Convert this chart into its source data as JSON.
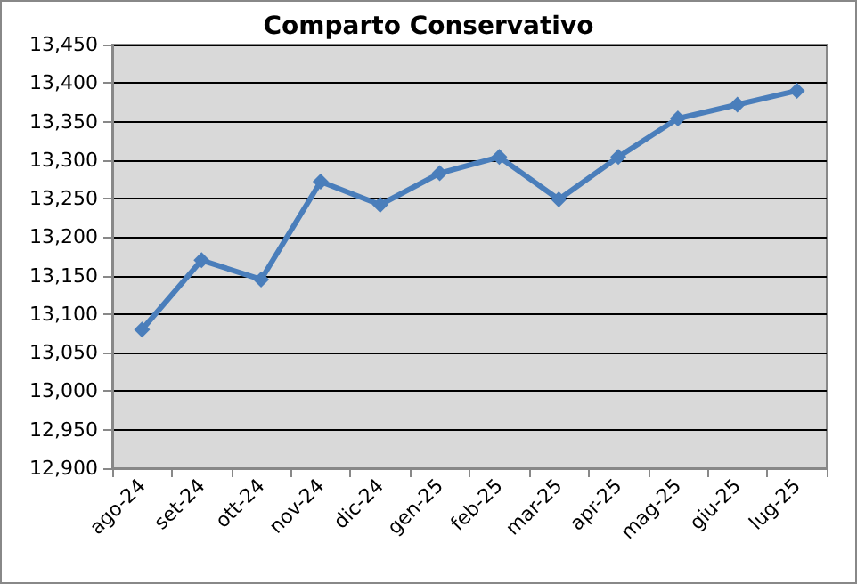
{
  "chart_data": {
    "type": "line",
    "title": "Comparto Conservativo",
    "categories": [
      "ago-24",
      "set-24",
      "ott-24",
      "nov-24",
      "dic-24",
      "gen-25",
      "feb-25",
      "mar-25",
      "apr-25",
      "mag-25",
      "giu-25",
      "lug-25"
    ],
    "series": [
      {
        "color": "#4a7ebb",
        "values": [
          13080,
          13170,
          13145,
          13272,
          13242,
          13283,
          13304,
          13249,
          13304,
          13354,
          13372,
          13390
        ]
      }
    ],
    "ylim": [
      12900,
      13450
    ],
    "yticks": [
      {
        "value": 12900,
        "label": "12,900"
      },
      {
        "value": 12950,
        "label": "12,950"
      },
      {
        "value": 13000,
        "label": "13,000"
      },
      {
        "value": 13050,
        "label": "13,050"
      },
      {
        "value": 13100,
        "label": "13,100"
      },
      {
        "value": 13150,
        "label": "13,150"
      },
      {
        "value": 13200,
        "label": "13,200"
      },
      {
        "value": 13250,
        "label": "13,250"
      },
      {
        "value": 13300,
        "label": "13,300"
      },
      {
        "value": 13350,
        "label": "13,350"
      },
      {
        "value": 13400,
        "label": "13,400"
      },
      {
        "value": 13450,
        "label": "13,450"
      }
    ],
    "grid": "y",
    "marker": "diamond",
    "line_style": "solid"
  }
}
